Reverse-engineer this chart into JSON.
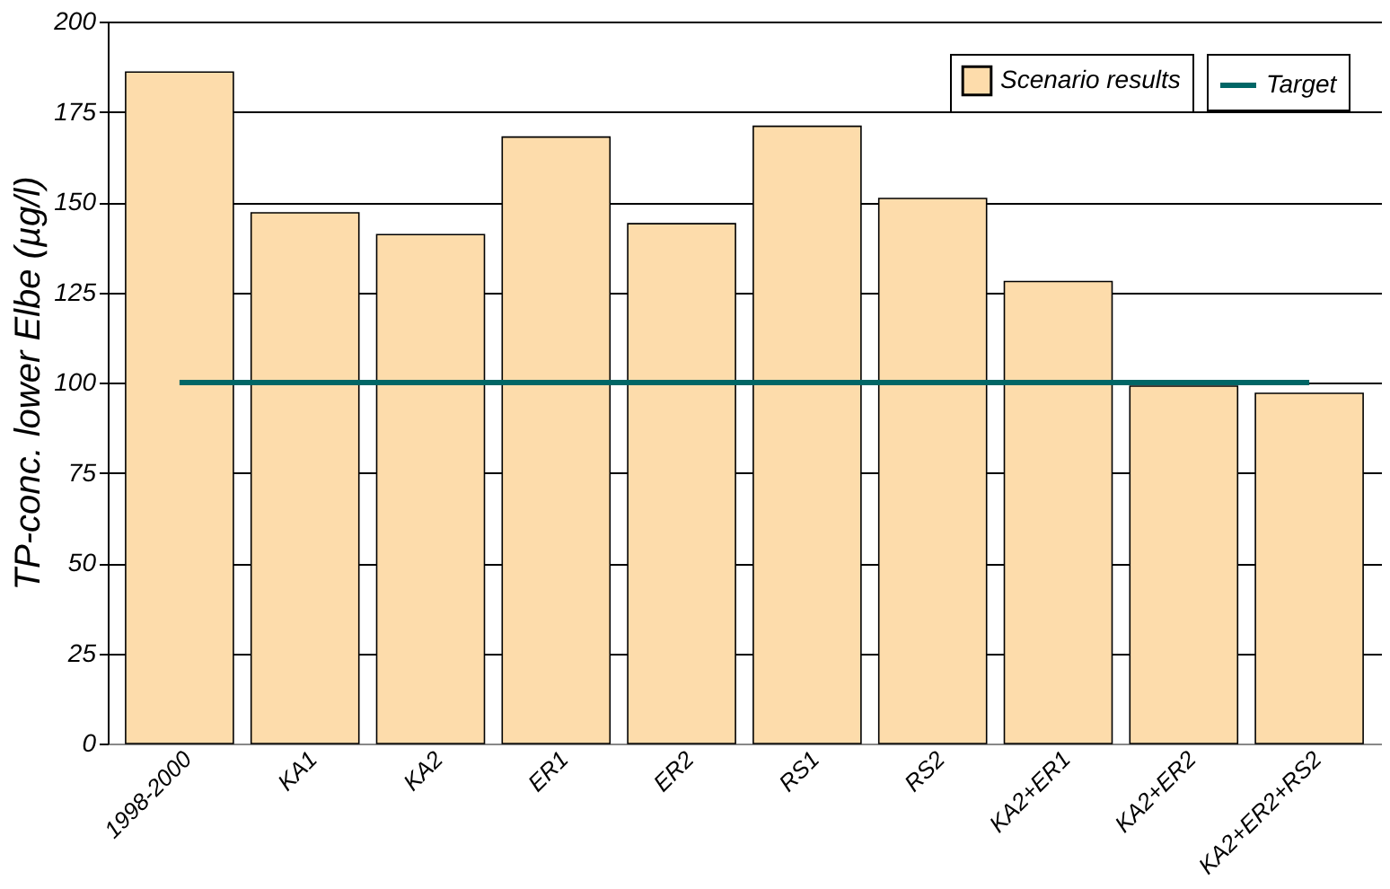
{
  "chart_data": {
    "type": "bar",
    "ylabel": "TP-conc. lower Elbe (µg/l)",
    "categories": [
      "1998-2000",
      "KA1",
      "KA2",
      "ER1",
      "ER2",
      "RS1",
      "RS2",
      "KA2+ER1",
      "KA2+ER2",
      "KA2+ER2+RS2"
    ],
    "series": [
      {
        "name": "Scenario results",
        "color": "#fddcab",
        "values": [
          186,
          147,
          141,
          168,
          144,
          171,
          151,
          128,
          99,
          97
        ]
      },
      {
        "name": "Target",
        "type": "line",
        "color": "#006666",
        "values": [
          100,
          100,
          100,
          100,
          100,
          100,
          100,
          100,
          100,
          100
        ]
      }
    ],
    "ylim": [
      0,
      200
    ],
    "yticks": [
      0,
      25,
      50,
      75,
      100,
      125,
      150,
      175,
      200
    ],
    "grid": "y",
    "legend": "top right"
  }
}
